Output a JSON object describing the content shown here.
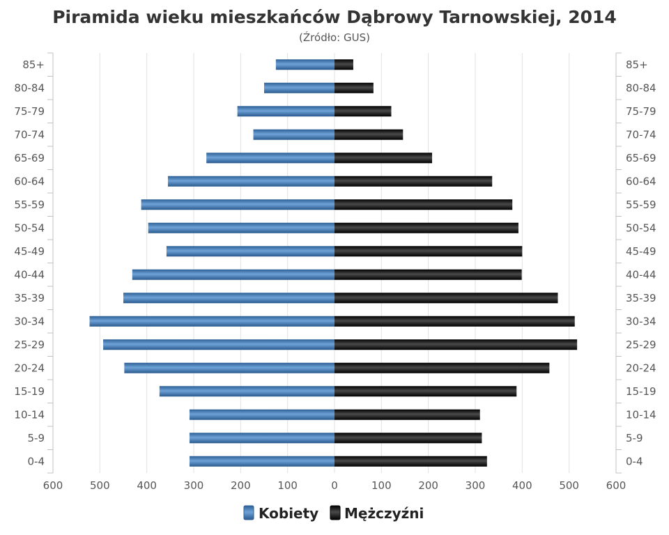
{
  "chart_data": {
    "type": "bar",
    "orientation": "horizontal",
    "title": "Piramida wieku mieszkańców Dąbrowy Tarnowskiej, 2014",
    "subtitle": "(Źródło: GUS)",
    "categories": [
      "85+",
      "80-84",
      "75-79",
      "70-74",
      "65-69",
      "60-64",
      "55-59",
      "50-54",
      "45-49",
      "40-44",
      "35-39",
      "30-34",
      "25-29",
      "20-24",
      "15-19",
      "10-14",
      "5-9",
      "0-4"
    ],
    "series": [
      {
        "name": "Kobiety",
        "color": "#3d79b6",
        "values": [
          125,
          150,
          207,
          173,
          273,
          355,
          412,
          397,
          358,
          431,
          450,
          522,
          493,
          448,
          373,
          309,
          309,
          309
        ]
      },
      {
        "name": "Mężczyźni",
        "color": "#1a1a1a",
        "values": [
          40,
          83,
          121,
          146,
          208,
          336,
          379,
          392,
          400,
          399,
          476,
          512,
          517,
          458,
          388,
          310,
          314,
          325
        ]
      }
    ],
    "xlim": [
      -600,
      600
    ],
    "x_ticks": [
      "600",
      "500",
      "400",
      "300",
      "200",
      "100",
      "0",
      "100",
      "200",
      "300",
      "400",
      "500",
      "600"
    ],
    "grid": true,
    "legend_position": "bottom-center"
  }
}
